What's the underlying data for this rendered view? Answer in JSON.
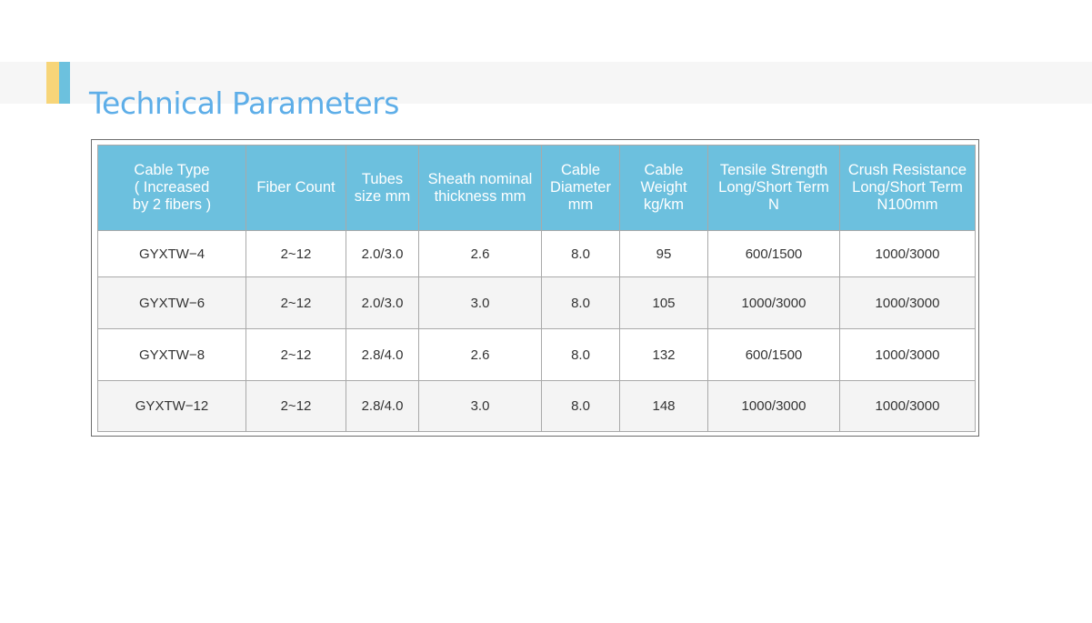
{
  "colors": {
    "accent_yellow": "#f7d579",
    "accent_blue": "#6cc1de",
    "title_blue": "#5eaee8",
    "header_bg": "#6cc0de"
  },
  "header": {
    "title": "Technical Parameters"
  },
  "table": {
    "columns": [
      "Cable Type\n( Increased\nby 2 fibers )",
      "Fiber Count",
      "Tubes\nsize mm",
      "Sheath nominal\nthickness mm",
      "Cable\nDiameter\nmm",
      "Cable\nWeight\nkg/km",
      "Tensile Strength\nLong/Short Term\nN",
      "Crush Resistance\nLong/Short Term\nN100mm"
    ],
    "rows": [
      [
        "GYXTW−4",
        "2~12",
        "2.0/3.0",
        "2.6",
        "8.0",
        "95",
        "600/1500",
        "1000/3000"
      ],
      [
        "GYXTW−6",
        "2~12",
        "2.0/3.0",
        "3.0",
        "8.0",
        "105",
        "1000/3000",
        "1000/3000"
      ],
      [
        "GYXTW−8",
        "2~12",
        "2.8/4.0",
        "2.6",
        "8.0",
        "132",
        "600/1500",
        "1000/3000"
      ],
      [
        "GYXTW−12",
        "2~12",
        "2.8/4.0",
        "3.0",
        "8.0",
        "148",
        "1000/3000",
        "1000/3000"
      ]
    ]
  }
}
